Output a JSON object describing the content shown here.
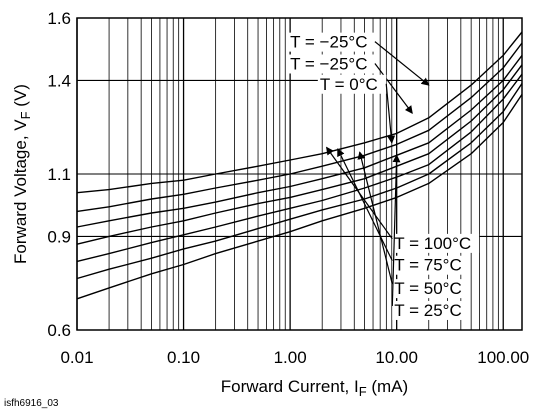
{
  "chart_data": {
    "type": "line",
    "title": "",
    "xlabel": "Forward Current, I",
    "xlabel_sub": "F",
    "xlabel_unit": " (mA)",
    "ylabel": "Forward Voltage, V",
    "ylabel_sub": "F",
    "ylabel_unit": " (V)",
    "x_scale": "log",
    "xlim": [
      0.01,
      150
    ],
    "ylim": [
      0.6,
      1.6
    ],
    "x_ticks": [
      0.01,
      0.1,
      1,
      10,
      100
    ],
    "x_tick_labels": [
      "0.01",
      "0.10",
      "1.00",
      "10.00",
      "100.00"
    ],
    "y_ticks": [
      0.6,
      0.9,
      1.1,
      1.4,
      1.6
    ],
    "y_tick_labels": [
      "0.6",
      "0.9",
      "1.1",
      "1.4",
      "1.6"
    ],
    "grid": true,
    "figure_id": "isfh6916_03",
    "series": [
      {
        "name": "T = −25°C",
        "x": [
          0.01,
          0.02,
          0.05,
          0.1,
          0.2,
          0.5,
          1,
          2,
          5,
          10,
          20,
          50,
          100,
          150
        ],
        "y": [
          1.04,
          1.05,
          1.07,
          1.08,
          1.1,
          1.125,
          1.145,
          1.165,
          1.2,
          1.23,
          1.28,
          1.385,
          1.48,
          1.555
        ]
      },
      {
        "name": "T = −25°C",
        "x": [
          0.01,
          0.02,
          0.05,
          0.1,
          0.2,
          0.5,
          1,
          2,
          5,
          10,
          20,
          50,
          100,
          150
        ],
        "y": [
          0.98,
          0.995,
          1.02,
          1.035,
          1.055,
          1.08,
          1.1,
          1.125,
          1.16,
          1.195,
          1.24,
          1.345,
          1.44,
          1.52
        ]
      },
      {
        "name": "T = 0°C",
        "x": [
          0.01,
          0.02,
          0.05,
          0.1,
          0.2,
          0.5,
          1,
          2,
          5,
          10,
          20,
          50,
          100,
          150
        ],
        "y": [
          0.93,
          0.95,
          0.975,
          0.99,
          1.01,
          1.04,
          1.06,
          1.085,
          1.12,
          1.16,
          1.2,
          1.305,
          1.4,
          1.48
        ]
      },
      {
        "name": "T = 25°C",
        "x": [
          0.01,
          0.02,
          0.05,
          0.1,
          0.2,
          0.5,
          1,
          2,
          5,
          10,
          20,
          50,
          100,
          150
        ],
        "y": [
          0.875,
          0.9,
          0.93,
          0.95,
          0.975,
          1.005,
          1.025,
          1.05,
          1.085,
          1.125,
          1.165,
          1.27,
          1.37,
          1.45
        ]
      },
      {
        "name": "T = 50°C",
        "x": [
          0.01,
          0.02,
          0.05,
          0.1,
          0.2,
          0.5,
          1,
          2,
          5,
          10,
          20,
          50,
          100,
          150
        ],
        "y": [
          0.82,
          0.845,
          0.88,
          0.905,
          0.93,
          0.965,
          0.99,
          1.015,
          1.055,
          1.09,
          1.13,
          1.235,
          1.34,
          1.42
        ]
      },
      {
        "name": "T = 75°C",
        "x": [
          0.01,
          0.02,
          0.05,
          0.1,
          0.2,
          0.5,
          1,
          2,
          5,
          10,
          20,
          50,
          100,
          150
        ],
        "y": [
          0.765,
          0.795,
          0.83,
          0.86,
          0.885,
          0.925,
          0.955,
          0.985,
          1.02,
          1.055,
          1.1,
          1.2,
          1.3,
          1.39
        ]
      },
      {
        "name": "T = 100°C",
        "x": [
          0.01,
          0.02,
          0.05,
          0.1,
          0.2,
          0.5,
          1,
          2,
          5,
          10,
          20,
          50,
          100,
          150
        ],
        "y": [
          0.7,
          0.735,
          0.78,
          0.81,
          0.845,
          0.885,
          0.915,
          0.95,
          0.99,
          1.025,
          1.07,
          1.165,
          1.265,
          1.355
        ]
      }
    ],
    "annotations": [
      {
        "text": "T = −25°C",
        "x": 1.0,
        "y": 1.505,
        "target": [
          20,
          1.385
        ]
      },
      {
        "text": "T = −25°C",
        "x": 1.0,
        "y": 1.435,
        "target": [
          14,
          1.295
        ]
      },
      {
        "text": "T = 0°C",
        "x": 1.9,
        "y": 1.37,
        "target": [
          9,
          1.2
        ]
      },
      {
        "text": "T = 100°C",
        "x": 9.5,
        "y": 0.86,
        "target": [
          2.2,
          1.185
        ]
      },
      {
        "text": "T = 75°C",
        "x": 9.5,
        "y": 0.79,
        "target": [
          2.8,
          1.18
        ]
      },
      {
        "text": "T = 50°C",
        "x": 9.5,
        "y": 0.715,
        "target": [
          4.5,
          1.17
        ]
      },
      {
        "text": "T = 25°C",
        "x": 9.5,
        "y": 0.645,
        "target": [
          10,
          1.16
        ]
      }
    ]
  }
}
